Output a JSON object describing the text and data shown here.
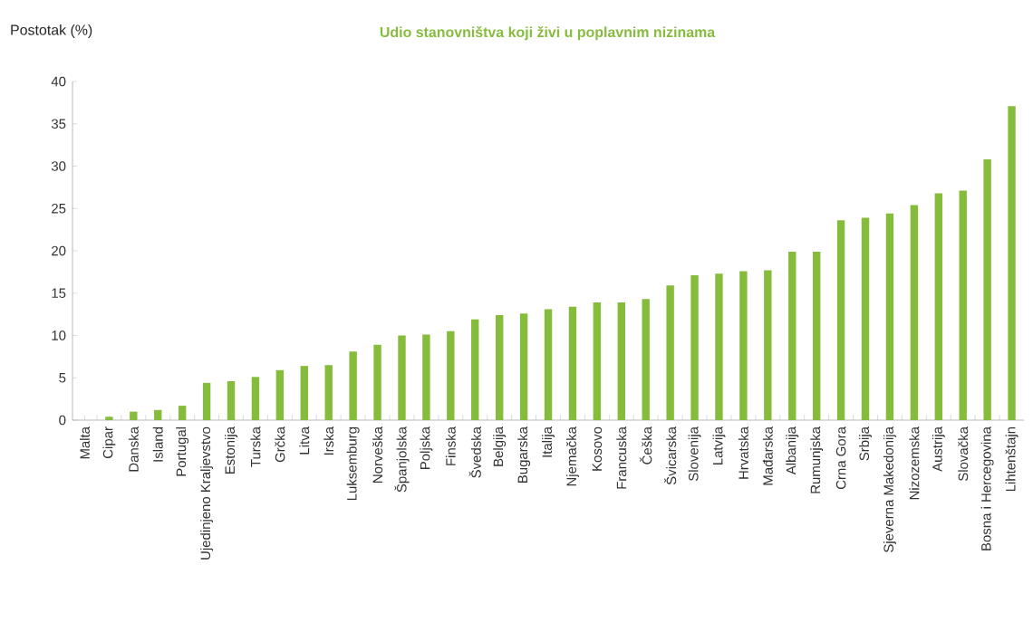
{
  "chart_data": {
    "type": "bar",
    "title": "Udio stanovništva koji živi u poplavnim nizinama",
    "ylabel": "Postotak (%)",
    "categories": [
      "Malta",
      "Cipar",
      "Danska",
      "Island",
      "Portugal",
      "Ujedinjeno Kraljevstvo",
      "Estonija",
      "Turska",
      "Grčka",
      "Litva",
      "Irska",
      "Luksemburg",
      "Norveška",
      "Španjolska",
      "Poljska",
      "Finska",
      "Švedska",
      "Belgija",
      "Bugarska",
      "Italija",
      "Njemačka",
      "Kosovo",
      "Francuska",
      "Češka",
      "Švicarska",
      "Slovenija",
      "Latvija",
      "Hrvatska",
      "Mađarska",
      "Albanija",
      "Rumunjska",
      "Crna Gora",
      "Srbija",
      "Sjeverna Makedonija",
      "Nizozemska",
      "Austrija",
      "Slovačka",
      "Bosna i Hercegovina",
      "Lihtenštajn"
    ],
    "values": [
      0,
      0.4,
      1.0,
      1.2,
      1.7,
      4.4,
      4.6,
      5.1,
      5.9,
      6.4,
      6.5,
      8.1,
      8.9,
      10.0,
      10.1,
      10.5,
      11.9,
      12.4,
      12.6,
      13.1,
      13.4,
      13.9,
      13.9,
      14.3,
      15.9,
      17.1,
      17.3,
      17.6,
      17.7,
      19.9,
      19.9,
      23.6,
      23.9,
      24.4,
      25.4,
      26.8,
      27.1,
      30.8,
      37.1
    ],
    "color": "#86bc3c",
    "ylim": [
      0,
      40
    ],
    "yticks": [
      0,
      5,
      10,
      15,
      20,
      25,
      30,
      35,
      40
    ],
    "grid": false
  }
}
